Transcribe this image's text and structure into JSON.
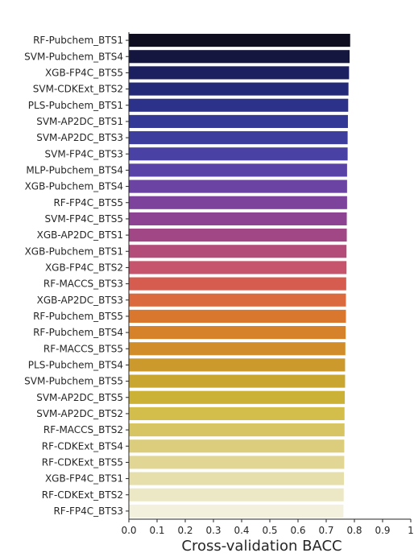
{
  "chart_data": {
    "type": "bar",
    "orientation": "horizontal",
    "xlabel": "Cross-validation BACC",
    "ylabel": "",
    "xlim": [
      0,
      1
    ],
    "xticks": [
      "0.0",
      "0.1",
      "0.2",
      "0.3",
      "0.4",
      "0.5",
      "0.6",
      "0.7",
      "0.8",
      "0.9",
      "1"
    ],
    "grid": false,
    "categories": [
      "RF-Pubchem_BTS1",
      "SVM-Pubchem_BTS4",
      "XGB-FP4C_BTS5",
      "SVM-CDKExt_BTS2",
      "PLS-Pubchem_BTS1",
      "SVM-AP2DC_BTS1",
      "SVM-AP2DC_BTS3",
      "SVM-FP4C_BTS3",
      "MLP-Pubchem_BTS4",
      "XGB-Pubchem_BTS4",
      "RF-FP4C_BTS5",
      "SVM-FP4C_BTS5",
      "XGB-AP2DC_BTS1",
      "XGB-Pubchem_BTS1",
      "XGB-FP4C_BTS2",
      "RF-MACCS_BTS3",
      "XGB-AP2DC_BTS3",
      "RF-Pubchem_BTS5",
      "RF-Pubchem_BTS4",
      "RF-MACCS_BTS5",
      "PLS-Pubchem_BTS4",
      "SVM-Pubchem_BTS5",
      "SVM-AP2DC_BTS5",
      "SVM-AP2DC_BTS2",
      "RF-MACCS_BTS2",
      "RF-CDKExt_BTS4",
      "RF-CDKExt_BTS5",
      "XGB-FP4C_BTS1",
      "RF-CDKExt_BTS2",
      "RF-FP4C_BTS3"
    ],
    "values": [
      0.785,
      0.783,
      0.781,
      0.779,
      0.778,
      0.777,
      0.776,
      0.776,
      0.774,
      0.774,
      0.774,
      0.773,
      0.773,
      0.772,
      0.772,
      0.771,
      0.77,
      0.77,
      0.769,
      0.768,
      0.767,
      0.767,
      0.766,
      0.765,
      0.765,
      0.764,
      0.764,
      0.763,
      0.762,
      0.761
    ],
    "colormap": "CMRmap",
    "colors": [
      "#0d0d1f",
      "#15163f",
      "#1d2060",
      "#242a78",
      "#2c318a",
      "#333795",
      "#3d3d9e",
      "#4a41a4",
      "#5a43a6",
      "#6b43a3",
      "#7c429c",
      "#8e4292",
      "#a14786",
      "#b44c79",
      "#c5546c",
      "#d75c50",
      "#dc6a3f",
      "#d9772e",
      "#d5822b",
      "#d08d2a",
      "#cc992c",
      "#c9a630",
      "#ccb137",
      "#d3bd4b",
      "#d7c563",
      "#dccd7c",
      "#e1d694",
      "#e6dfac",
      "#ece8c5",
      "#f3f1de"
    ]
  }
}
